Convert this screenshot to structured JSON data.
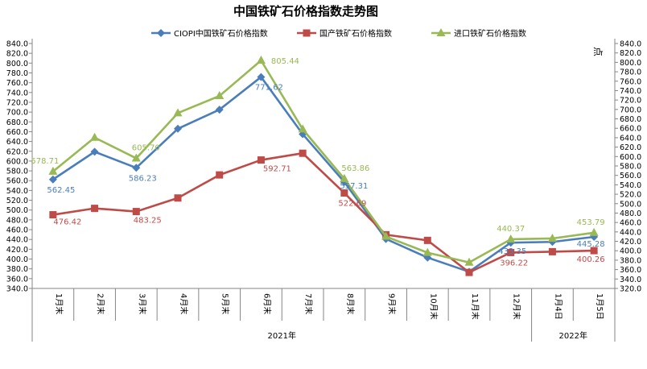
{
  "chart_data": {
    "type": "line",
    "title": "中国铁矿石价格指数走势图",
    "unit_label": "点",
    "categories": [
      "1月末",
      "2月末",
      "3月末",
      "4月末",
      "5月末",
      "6月末",
      "7月末",
      "8月末",
      "9月末",
      "10月末",
      "11月末",
      "12月末",
      "1月4日",
      "1月5日"
    ],
    "year_groups": [
      {
        "label": "2021年",
        "count": 12
      },
      {
        "label": "2022年",
        "count": 2
      }
    ],
    "left_axis": {
      "min": 340,
      "max": 840,
      "step": 20
    },
    "right_axis": {
      "min": 320,
      "max": 840,
      "step": 20
    },
    "grid": false,
    "legend_position": "top",
    "series": [
      {
        "name": "CIOPI中国铁矿石价格指数",
        "axis": "left",
        "color": "#4a7ebb",
        "marker": "diamond",
        "values": [
          562.45,
          619,
          586.23,
          666,
          705,
          771.62,
          655,
          557.31,
          441,
          403,
          374,
          433.35,
          435,
          445.28
        ],
        "labels": [
          "562.45",
          "",
          "586.23",
          "",
          "",
          "771.62",
          "",
          "557.31",
          "",
          "",
          "",
          "433.35",
          "",
          "445.28"
        ]
      },
      {
        "name": "国产铁矿石价格指数",
        "axis": "right",
        "color": "#be4b48",
        "marker": "square",
        "values": [
          476.42,
          490,
          483.25,
          512,
          561,
          592.71,
          607,
          522.69,
          434,
          422,
          354,
          396.22,
          398,
          400.26
        ],
        "labels": [
          "476.42",
          "",
          "483.25",
          "",
          "",
          "592.71",
          "",
          "522.69",
          "",
          "",
          "",
          "396.22",
          "",
          "400.26"
        ]
      },
      {
        "name": "进口铁矿石价格指数",
        "axis": "left",
        "color": "#98b954",
        "marker": "triangle",
        "values": [
          578.71,
          648,
          605.7,
          698,
          733,
          805.44,
          665,
          563.86,
          446,
          413,
          393,
          440.37,
          442,
          453.79
        ],
        "labels": [
          "578.71",
          "",
          "605.70",
          "",
          "",
          "805.44",
          "",
          "563.86",
          "",
          "",
          "",
          "440.37",
          "",
          "453.79"
        ]
      }
    ]
  }
}
